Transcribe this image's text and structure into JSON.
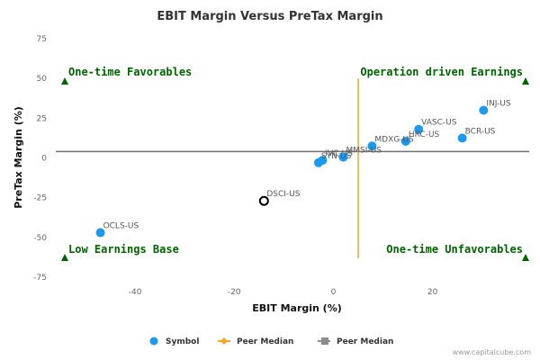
{
  "chart_data": {
    "type": "scatter",
    "title": "EBIT Margin Versus PreTax Margin",
    "xlabel": "EBIT Margin (%)",
    "ylabel": "PreTax Margin (%)",
    "xlim": [
      -56,
      39.5
    ],
    "ylim": [
      -75,
      75
    ],
    "xticks": [
      -40,
      -20,
      0,
      20
    ],
    "yticks": [
      75,
      50,
      25,
      0,
      -25,
      -50,
      -75
    ],
    "points": [
      {
        "label": "INJ-US",
        "x": 30.3,
        "y": 30,
        "highlight": false
      },
      {
        "label": "VASC-US",
        "x": 17.2,
        "y": 18,
        "highlight": false
      },
      {
        "label": "HRC-US",
        "x": 14.6,
        "y": 10.5,
        "highlight": false
      },
      {
        "label": "BCR-US",
        "x": 26.0,
        "y": 12.5,
        "highlight": false
      },
      {
        "label": "MDXG-US",
        "x": 7.8,
        "y": 7.5,
        "highlight": false
      },
      {
        "label": "IVC-US",
        "x": -2.2,
        "y": -1.5,
        "highlight": false
      },
      {
        "label": "MMSI-US",
        "x": 2.0,
        "y": 0.5,
        "highlight": false
      },
      {
        "label": "SYN-US",
        "x": -3.0,
        "y": -3,
        "highlight": false
      },
      {
        "label": "DSCI-US",
        "x": -14.0,
        "y": -27,
        "highlight": true
      },
      {
        "label": "OCLS-US",
        "x": -47.0,
        "y": -47,
        "highlight": false
      }
    ],
    "peer_median_x": 5,
    "peer_median_y": 4,
    "quadrants": {
      "top_left": "One-time Favorables",
      "top_right": "Operation driven Earnings",
      "bottom_left": "Low Earnings Base",
      "bottom_right": "One-time Unfavorables"
    },
    "legend": [
      {
        "label": "Symbol",
        "color": "#1a9af0"
      },
      {
        "label": "Peer Median",
        "color": "#f4a824"
      },
      {
        "label": "Peer Median",
        "color": "#8c8c8c"
      }
    ],
    "credit": "www.capitalcube.com",
    "colors": {
      "point": "#1a9af0",
      "highlight_stroke": "#000000",
      "vline": "#f4a824",
      "hline": "#707070",
      "quadrant": "#006400"
    }
  }
}
